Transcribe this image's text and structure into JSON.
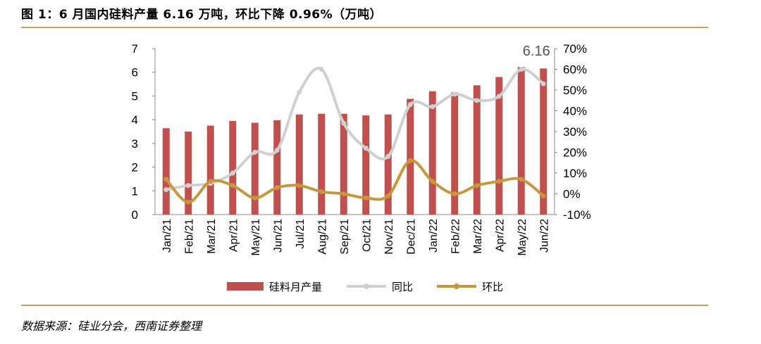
{
  "figure": {
    "title": "图 1：6 月国内硅料产量 6.16 万吨，环比下降 0.96%（万吨）",
    "source": "数据来源：硅业分会，西南证券整理"
  },
  "chart_data": {
    "type": "bar",
    "categories": [
      "Jan/21",
      "Feb/21",
      "Mar/21",
      "Apr/21",
      "May/21",
      "Jun/21",
      "Jul/21",
      "Aug/21",
      "Sep/21",
      "Oct/21",
      "Nov/21",
      "Dec/21",
      "Jan/22",
      "Feb/22",
      "Mar/22",
      "Apr/22",
      "May/22",
      "Jun/22"
    ],
    "series": [
      {
        "name": "硅料月产量",
        "kind": "bar",
        "axis": "left",
        "color": "#c0504d",
        "values": [
          3.64,
          3.5,
          3.75,
          3.95,
          3.87,
          3.98,
          4.22,
          4.25,
          4.25,
          4.18,
          4.22,
          4.88,
          5.2,
          5.15,
          5.45,
          5.8,
          6.22,
          6.16
        ]
      },
      {
        "name": "同比",
        "kind": "line",
        "axis": "right",
        "color": "#d0d0d0",
        "values": [
          2,
          4,
          5,
          10,
          20,
          21,
          49,
          60,
          34,
          22,
          18,
          43,
          42,
          48,
          45,
          47,
          60,
          53
        ]
      },
      {
        "name": "环比",
        "kind": "line",
        "axis": "right",
        "color": "#c8963c",
        "values": [
          7,
          -4,
          6,
          4,
          -2,
          3,
          4,
          1,
          0,
          -2,
          -1,
          16,
          6,
          0,
          4,
          6,
          7,
          -1
        ]
      }
    ],
    "left_axis": {
      "min": 0,
      "max": 7,
      "ticks": [
        "0",
        "1",
        "2",
        "3",
        "4",
        "5",
        "6",
        "7"
      ]
    },
    "right_axis": {
      "min": -10,
      "max": 70,
      "ticks": [
        "-10%",
        "0%",
        "10%",
        "20%",
        "30%",
        "40%",
        "50%",
        "60%",
        "70%"
      ]
    },
    "annotations": [
      {
        "category": "Jun/22",
        "text": "6.16"
      }
    ],
    "legend_position": "bottom",
    "grid": false
  }
}
